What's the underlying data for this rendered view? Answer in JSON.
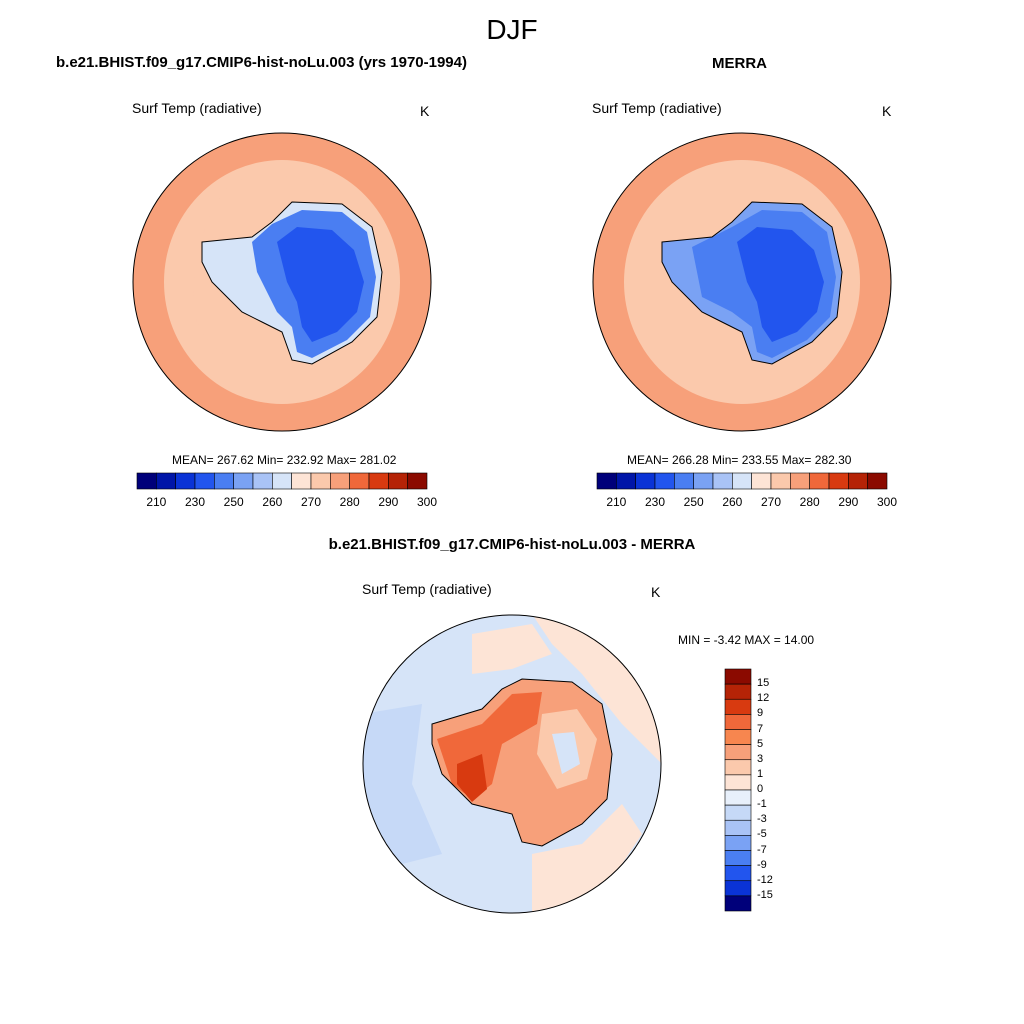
{
  "title": "DJF",
  "panels": [
    {
      "heading": "b.e21.BHIST.f09_g17.CMIP6-hist-noLu.003 (yrs 1970-1994)",
      "variable": "Surf Temp (radiative)",
      "units": "K",
      "stats": "MEAN= 267.62  Min= 232.92  Max= 281.02"
    },
    {
      "heading": "MERRA",
      "variable": "Surf Temp (radiative)",
      "units": "K",
      "stats": "MEAN= 266.28  Min= 233.55  Max= 282.30"
    },
    {
      "heading": "b.e21.BHIST.f09_g17.CMIP6-hist-noLu.003 - MERRA",
      "variable": "Surf Temp (radiative)",
      "units": "K",
      "stats": "MIN =  -3.42 MAX =  14.00"
    }
  ],
  "abs_colorbar": {
    "labels": [
      "210",
      "230",
      "250",
      "260",
      "270",
      "280",
      "290",
      "300"
    ],
    "colors": [
      "#00007a",
      "#0015a8",
      "#0a33d6",
      "#2255ee",
      "#4a7ef2",
      "#7aa2f4",
      "#a9c3f6",
      "#d6e4f8",
      "#fde4d6",
      "#fbc9ac",
      "#f7a07a",
      "#f0683a",
      "#d83a10",
      "#b52306",
      "#8b0a00"
    ]
  },
  "diff_colorbar": {
    "labels": [
      "15",
      "12",
      "9",
      "7",
      "5",
      "3",
      "1",
      "0",
      "-1",
      "-3",
      "-5",
      "-7",
      "-9",
      "-12",
      "-15"
    ],
    "colors": [
      "#8b0a00",
      "#b52306",
      "#d83a10",
      "#f0683a",
      "#f7864f",
      "#f7a07a",
      "#fbc9ac",
      "#fde4d6",
      "#e8f0fb",
      "#c6d9f7",
      "#a9c3f6",
      "#7aa2f4",
      "#4a7ef2",
      "#2255ee",
      "#0a33d6",
      "#00007a"
    ]
  }
}
